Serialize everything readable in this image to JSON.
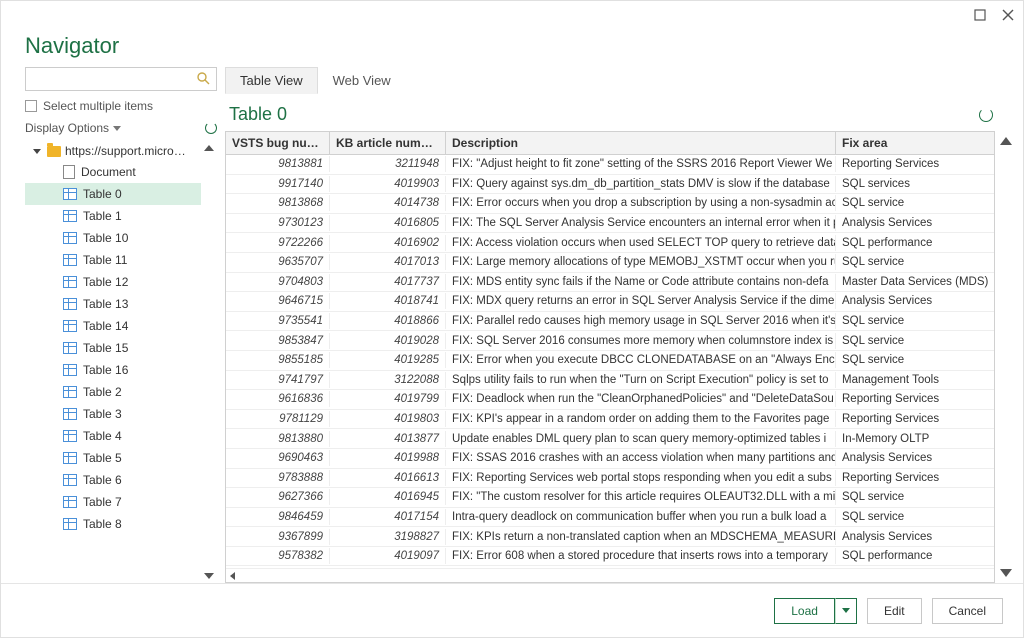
{
  "title": "Navigator",
  "colors": {
    "accent": "#1e7145",
    "row_alt": "#ffffff",
    "header_bg": "#f3f3f3",
    "selected_bg": "#d9efe3",
    "border": "#d0d0d0"
  },
  "left": {
    "select_multiple": "Select multiple items",
    "display_options": "Display Options",
    "root": "https://support.micro…",
    "items": [
      {
        "label": "Document",
        "type": "doc",
        "selected": false
      },
      {
        "label": "Table 0",
        "type": "table",
        "selected": true
      },
      {
        "label": "Table 1",
        "type": "table",
        "selected": false
      },
      {
        "label": "Table 10",
        "type": "table",
        "selected": false
      },
      {
        "label": "Table 11",
        "type": "table",
        "selected": false
      },
      {
        "label": "Table 12",
        "type": "table",
        "selected": false
      },
      {
        "label": "Table 13",
        "type": "table",
        "selected": false
      },
      {
        "label": "Table 14",
        "type": "table",
        "selected": false
      },
      {
        "label": "Table 15",
        "type": "table",
        "selected": false
      },
      {
        "label": "Table 16",
        "type": "table",
        "selected": false
      },
      {
        "label": "Table 2",
        "type": "table",
        "selected": false
      },
      {
        "label": "Table 3",
        "type": "table",
        "selected": false
      },
      {
        "label": "Table 4",
        "type": "table",
        "selected": false
      },
      {
        "label": "Table 5",
        "type": "table",
        "selected": false
      },
      {
        "label": "Table 6",
        "type": "table",
        "selected": false
      },
      {
        "label": "Table 7",
        "type": "table",
        "selected": false
      },
      {
        "label": "Table 8",
        "type": "table",
        "selected": false
      }
    ]
  },
  "tabs": [
    "Table View",
    "Web View"
  ],
  "table": {
    "name": "Table 0",
    "columns": [
      "VSTS bug number",
      "KB article number",
      "Description",
      "Fix area"
    ],
    "col_align": [
      "right",
      "right",
      "left",
      "left"
    ],
    "rows": [
      [
        "9813881",
        "3211948",
        "FIX: \"Adjust height to fit zone\" setting of the SSRS 2016 Report Viewer We",
        "Reporting Services"
      ],
      [
        "9917140",
        "4019903",
        "FIX: Query against sys.dm_db_partition_stats DMV is slow if the database",
        "SQL services"
      ],
      [
        "9813868",
        "4014738",
        "FIX: Error occurs when you drop a subscription by using a non-sysadmin ac",
        "SQL service"
      ],
      [
        "9730123",
        "4016805",
        "FIX: The SQL Server Analysis Service encounters an internal error when it p",
        "Analysis Services"
      ],
      [
        "9722266",
        "4016902",
        "FIX: Access violation occurs when used SELECT TOP query to retrieve data",
        "SQL performance"
      ],
      [
        "9635707",
        "4017013",
        "FIX: Large memory allocations of type MEMOBJ_XSTMT occur when you ru",
        "SQL service"
      ],
      [
        "9704803",
        "4017737",
        "FIX: MDS entity sync fails if the Name or Code attribute contains non-defa",
        "Master Data Services (MDS)"
      ],
      [
        "9646715",
        "4018741",
        "FIX: MDX query returns an error in SQL Server Analysis Service if the dime",
        "Analysis Services"
      ],
      [
        "9735541",
        "4018866",
        "FIX: Parallel redo causes high memory usage in SQL Server 2016 when it's",
        "SQL service"
      ],
      [
        "9853847",
        "4019028",
        "FIX: SQL Server 2016 consumes more memory when columnstore index is",
        "SQL service"
      ],
      [
        "9855185",
        "4019285",
        "FIX: Error when you execute DBCC CLONEDATABASE on an \"Always Encryp",
        "SQL service"
      ],
      [
        "9741797",
        "3122088",
        "Sqlps utility fails to run when the \"Turn on Script Execution\" policy is set to",
        "Management Tools"
      ],
      [
        "9616836",
        "4019799",
        "FIX: Deadlock when run the \"CleanOrphanedPolicies\" and \"DeleteDataSou",
        "Reporting Services"
      ],
      [
        "9781129",
        "4019803",
        "FIX: KPI's appear in a random order on adding them to the Favorites page",
        "Reporting Services"
      ],
      [
        "9813880",
        "4013877",
        "Update enables DML query plan to scan query memory-optimized tables i",
        "In-Memory OLTP"
      ],
      [
        "9690463",
        "4019988",
        "FIX: SSAS 2016 crashes with an access violation when many partitions and",
        "Analysis Services"
      ],
      [
        "9783888",
        "4016613",
        "FIX: Reporting Services web portal stops responding when you edit a subs",
        "Reporting Services"
      ],
      [
        "9627366",
        "4016945",
        "FIX: \"The custom resolver for this article requires OLEAUT32.DLL with a mi",
        "SQL service"
      ],
      [
        "9846459",
        "4017154",
        "Intra-query deadlock on communication buffer when you run a bulk load a",
        "SQL service"
      ],
      [
        "9367899",
        "3198827",
        "FIX: KPIs return a non-translated caption when an MDSCHEMA_MEASURE",
        "Analysis Services"
      ],
      [
        "9578382",
        "4019097",
        "FIX: Error 608 when a stored procedure that inserts rows into a temporary",
        "SQL performance"
      ]
    ]
  },
  "footer": {
    "load": "Load",
    "edit": "Edit",
    "cancel": "Cancel"
  }
}
